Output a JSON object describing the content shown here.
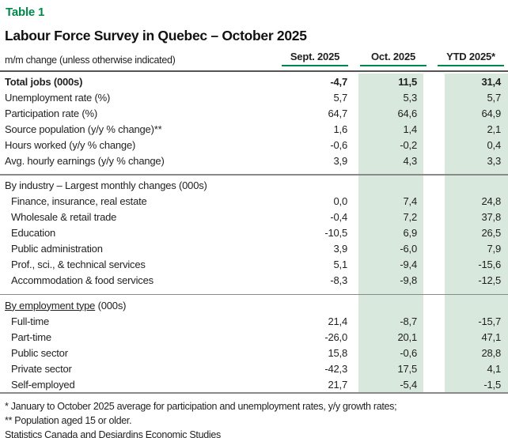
{
  "page": {
    "table_label": "Table 1",
    "title": "Labour Force Survey in Quebec – October 2025"
  },
  "columns": {
    "row_label": "m/m change (unless otherwise indicated)",
    "headers": [
      "Sept. 2025",
      "Oct. 2025",
      "YTD 2025*"
    ]
  },
  "colors": {
    "accent_green": "#00874E",
    "column_shade_green": "#D9E8DC",
    "header_rule_dark": "#555555",
    "section_divider_gray": "#8A8A8A",
    "text": "#1F1F1F"
  },
  "sections": [
    {
      "header_underlined": "",
      "header_plain": "",
      "rows": [
        {
          "label": "Total jobs (000s)",
          "bold": true,
          "indent": false,
          "values": [
            "-4,7",
            "11,5",
            "31,4"
          ]
        },
        {
          "label": "Unemployment rate (%)",
          "bold": false,
          "indent": false,
          "values": [
            "5,7",
            "5,3",
            "5,7"
          ]
        },
        {
          "label": "Participation rate (%)",
          "bold": false,
          "indent": false,
          "values": [
            "64,7",
            "64,6",
            "64,9"
          ]
        },
        {
          "label": "Source population (y/y % change)**",
          "bold": false,
          "indent": false,
          "values": [
            "1,6",
            "1,4",
            "2,1"
          ]
        },
        {
          "label": "Hours worked (y/y % change)",
          "bold": false,
          "indent": false,
          "values": [
            "-0,6",
            "-0,2",
            "0,4"
          ]
        },
        {
          "label": "Avg. hourly earnings (y/y % change)",
          "bold": false,
          "indent": false,
          "values": [
            "3,9",
            "4,3",
            "3,3"
          ]
        }
      ]
    },
    {
      "header_underlined": "",
      "header_plain": "By industry – Largest monthly changes (000s)",
      "rows": [
        {
          "label": "Finance, insurance, real estate",
          "bold": false,
          "indent": true,
          "values": [
            "0,0",
            "7,4",
            "24,8"
          ]
        },
        {
          "label": "Wholesale & retail trade",
          "bold": false,
          "indent": true,
          "values": [
            "-0,4",
            "7,2",
            "37,8"
          ]
        },
        {
          "label": "Education",
          "bold": false,
          "indent": true,
          "values": [
            "-10,5",
            "6,9",
            "26,5"
          ]
        },
        {
          "label": "Public administration",
          "bold": false,
          "indent": true,
          "values": [
            "3,9",
            "-6,0",
            "7,9"
          ]
        },
        {
          "label": "Prof., sci., & technical services",
          "bold": false,
          "indent": true,
          "values": [
            "5,1",
            "-9,4",
            "-15,6"
          ]
        },
        {
          "label": "Accommodation & food services",
          "bold": false,
          "indent": true,
          "values": [
            "-8,3",
            "-9,8",
            "-12,5"
          ]
        }
      ]
    },
    {
      "header_underlined": "By employment type",
      "header_plain": " (000s)",
      "rows": [
        {
          "label": "Full-time",
          "bold": false,
          "indent": true,
          "values": [
            "21,4",
            "-8,7",
            "-15,7"
          ]
        },
        {
          "label": "Part-time",
          "bold": false,
          "indent": true,
          "values": [
            "-26,0",
            "20,1",
            "47,1"
          ]
        },
        {
          "label": "Public sector",
          "bold": false,
          "indent": true,
          "values": [
            "15,8",
            "-0,6",
            "28,8"
          ]
        },
        {
          "label": "Private sector",
          "bold": false,
          "indent": true,
          "values": [
            "-42,3",
            "17,5",
            "4,1"
          ]
        },
        {
          "label": "Self-employed",
          "bold": false,
          "indent": true,
          "values": [
            "21,7",
            "-5,4",
            "-1,5"
          ]
        }
      ]
    }
  ],
  "footnotes": [
    "* January to October 2025 average for participation and unemployment rates, y/y growth rates;",
    "** Population aged 15 or older.",
    "Statistics Canada and Desjardins Economic Studies"
  ]
}
